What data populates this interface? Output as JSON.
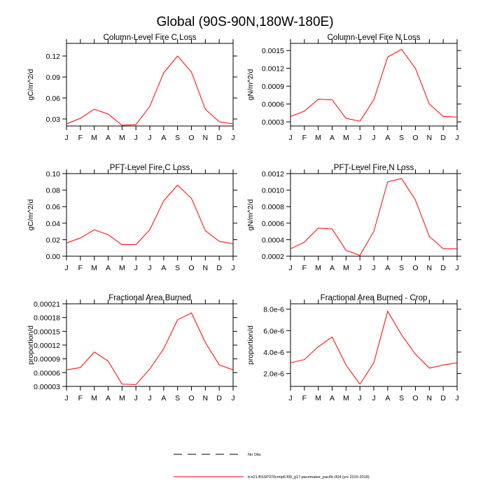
{
  "figure": {
    "title": "Global (90S-90N,180W-180E)",
    "legend": {
      "obs_label": "No Obs",
      "model_label": "b.e21.BSSP370cmip6.f09_g17.pacemaker_pacific.004 (yrs 2015-2018)",
      "model_color": "#ff0000"
    }
  },
  "chart_data": [
    {
      "type": "line",
      "title": "Column-Level Fire C Loss",
      "ylabel": "gC/m^2/d",
      "categories": [
        "J",
        "F",
        "M",
        "A",
        "M",
        "J",
        "J",
        "A",
        "S",
        "O",
        "N",
        "D",
        "J"
      ],
      "ylim": [
        0.02,
        0.138
      ],
      "yticks": [
        "0.03",
        "0.06",
        "0.09",
        "0.12"
      ],
      "ytick_values": [
        0.03,
        0.06,
        0.09,
        0.12
      ],
      "series": [
        {
          "color": "#ff0000",
          "values": [
            0.023,
            0.031,
            0.044,
            0.037,
            0.021,
            0.022,
            0.048,
            0.096,
            0.12,
            0.097,
            0.044,
            0.026,
            0.023
          ]
        }
      ]
    },
    {
      "type": "line",
      "title": "Column-Level Fire N Loss",
      "ylabel": "gN/m^2/d",
      "categories": [
        "J",
        "F",
        "M",
        "A",
        "M",
        "J",
        "J",
        "A",
        "S",
        "O",
        "N",
        "D",
        "J"
      ],
      "ylim": [
        0.00023,
        0.00162
      ],
      "yticks": [
        "0.0003",
        "0.0006",
        "0.0009",
        "0.0012",
        "0.0015"
      ],
      "ytick_values": [
        0.0003,
        0.0006,
        0.0009,
        0.0012,
        0.0015
      ],
      "series": [
        {
          "color": "#ff0000",
          "values": [
            0.00039,
            0.00048,
            0.00068,
            0.00067,
            0.00036,
            0.00031,
            0.00067,
            0.00139,
            0.00152,
            0.0012,
            0.0006,
            0.00039,
            0.00038
          ]
        }
      ]
    },
    {
      "type": "line",
      "title": "PFT-Level Fire C Loss",
      "ylabel": "gC/m^2/d",
      "categories": [
        "J",
        "F",
        "M",
        "A",
        "M",
        "J",
        "J",
        "A",
        "S",
        "O",
        "N",
        "D",
        "J"
      ],
      "ylim": [
        0.0,
        0.1
      ],
      "yticks": [
        "0.00",
        "0.02",
        "0.04",
        "0.06",
        "0.08",
        "0.10"
      ],
      "ytick_values": [
        0.0,
        0.02,
        0.04,
        0.06,
        0.08,
        0.1
      ],
      "series": [
        {
          "color": "#ff0000",
          "values": [
            0.016,
            0.022,
            0.032,
            0.026,
            0.014,
            0.014,
            0.032,
            0.067,
            0.086,
            0.07,
            0.031,
            0.018,
            0.015
          ]
        }
      ]
    },
    {
      "type": "line",
      "title": "PFT-Level Fire N Loss",
      "ylabel": "gN/m^2/d",
      "categories": [
        "J",
        "F",
        "M",
        "A",
        "M",
        "J",
        "J",
        "A",
        "S",
        "O",
        "N",
        "D",
        "J"
      ],
      "ylim": [
        0.0002,
        0.0012
      ],
      "yticks": [
        "0.0002",
        "0.0004",
        "0.0006",
        "0.0008",
        "0.0010",
        "0.0012"
      ],
      "ytick_values": [
        0.0002,
        0.0004,
        0.0006,
        0.0008,
        0.001,
        0.0012
      ],
      "series": [
        {
          "color": "#ff0000",
          "values": [
            0.00029,
            0.00037,
            0.00054,
            0.00053,
            0.00027,
            0.00021,
            0.0005,
            0.0011,
            0.00114,
            0.00088,
            0.00044,
            0.00029,
            0.00029
          ]
        }
      ]
    },
    {
      "type": "line",
      "title": "Fractional Area Burned",
      "ylabel": "proportion/d",
      "categories": [
        "J",
        "F",
        "M",
        "A",
        "M",
        "J",
        "J",
        "A",
        "S",
        "O",
        "N",
        "D",
        "J"
      ],
      "ylim": [
        3e-05,
        0.00021
      ],
      "yticks": [
        "0.00003",
        "0.00006",
        "0.00009",
        "0.00012",
        "0.00015",
        "0.00018",
        "0.00021"
      ],
      "ytick_values": [
        3e-05,
        6e-05,
        9e-05,
        0.00012,
        0.00015,
        0.00018,
        0.00021
      ],
      "series": [
        {
          "color": "#ff0000",
          "values": [
            6.6e-05,
            7.1e-05,
            0.000105,
            8.5e-05,
            3.5e-05,
            3.4e-05,
            6.8e-05,
            0.000112,
            0.000175,
            0.00019,
            0.000126,
            7.7e-05,
            6.6e-05
          ]
        }
      ]
    },
    {
      "type": "line",
      "title": "Fractional Area Burned - Crop",
      "ylabel": "proportion/d",
      "categories": [
        "J",
        "F",
        "M",
        "A",
        "M",
        "J",
        "J",
        "A",
        "S",
        "O",
        "N",
        "D",
        "J"
      ],
      "ylim": [
        8e-07,
        8.5e-06
      ],
      "yticks": [
        "2.0e-6",
        "4.0e-6",
        "6.0e-6",
        "8.0e-6"
      ],
      "ytick_values": [
        2e-06,
        4e-06,
        6e-06,
        8e-06
      ],
      "series": [
        {
          "color": "#ff0000",
          "values": [
            3e-06,
            3.3e-06,
            4.5e-06,
            5.4e-06,
            2.8e-06,
            1e-06,
            3e-06,
            7.8e-06,
            5.6e-06,
            3.8e-06,
            2.5e-06,
            2.8e-06,
            3e-06
          ]
        }
      ]
    }
  ]
}
